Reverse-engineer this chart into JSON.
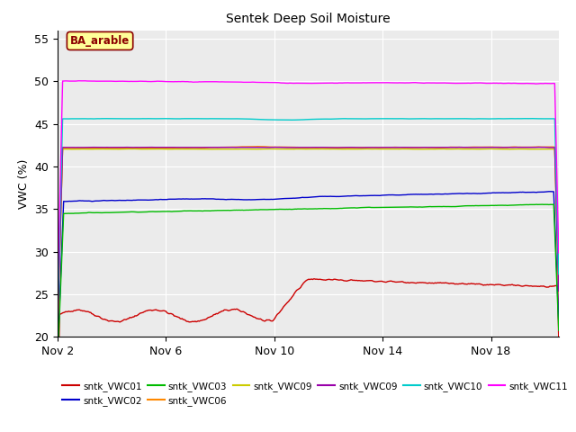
{
  "title": "Sentek Deep Soil Moisture",
  "ylabel": "VWC (%)",
  "ylim": [
    20,
    56
  ],
  "yticks": [
    20,
    25,
    30,
    35,
    40,
    45,
    50,
    55
  ],
  "xlim_days": [
    0,
    18.5
  ],
  "xtick_positions": [
    0,
    4,
    8,
    12,
    16
  ],
  "xtick_labels": [
    "Nov 2",
    "Nov 6",
    "Nov 10",
    "Nov 14",
    "Nov 18"
  ],
  "annotation_text": "BA_arable",
  "annotation_color": "#8B0000",
  "annotation_bg": "#FFFF99",
  "bg_color": "#EBEBEB",
  "grid_color": "#FFFFFF",
  "series": {
    "sntk_VWC01": {
      "color": "#CC0000",
      "label": "sntk_VWC01"
    },
    "sntk_VWC02": {
      "color": "#0000CC",
      "label": "sntk_VWC02"
    },
    "sntk_VWC03": {
      "color": "#00BB00",
      "label": "sntk_VWC03"
    },
    "sntk_VWC06": {
      "color": "#FF8800",
      "label": "sntk_VWC06"
    },
    "sntk_VWC09_yellow": {
      "color": "#CCCC00",
      "label": "sntk_VWC09"
    },
    "sntk_VWC09_purple": {
      "color": "#9900AA",
      "label": "sntk_VWC09"
    },
    "sntk_VWC10": {
      "color": "#00CCCC",
      "label": "sntk_VWC10"
    },
    "sntk_VWC11": {
      "color": "#FF00FF",
      "label": "sntk_VWC11"
    }
  },
  "legend_order": [
    "sntk_VWC01",
    "sntk_VWC02",
    "sntk_VWC03",
    "sntk_VWC06",
    "sntk_VWC09_yellow",
    "sntk_VWC09_purple",
    "sntk_VWC10",
    "sntk_VWC11"
  ],
  "figsize": [
    6.4,
    4.8
  ],
  "dpi": 100
}
